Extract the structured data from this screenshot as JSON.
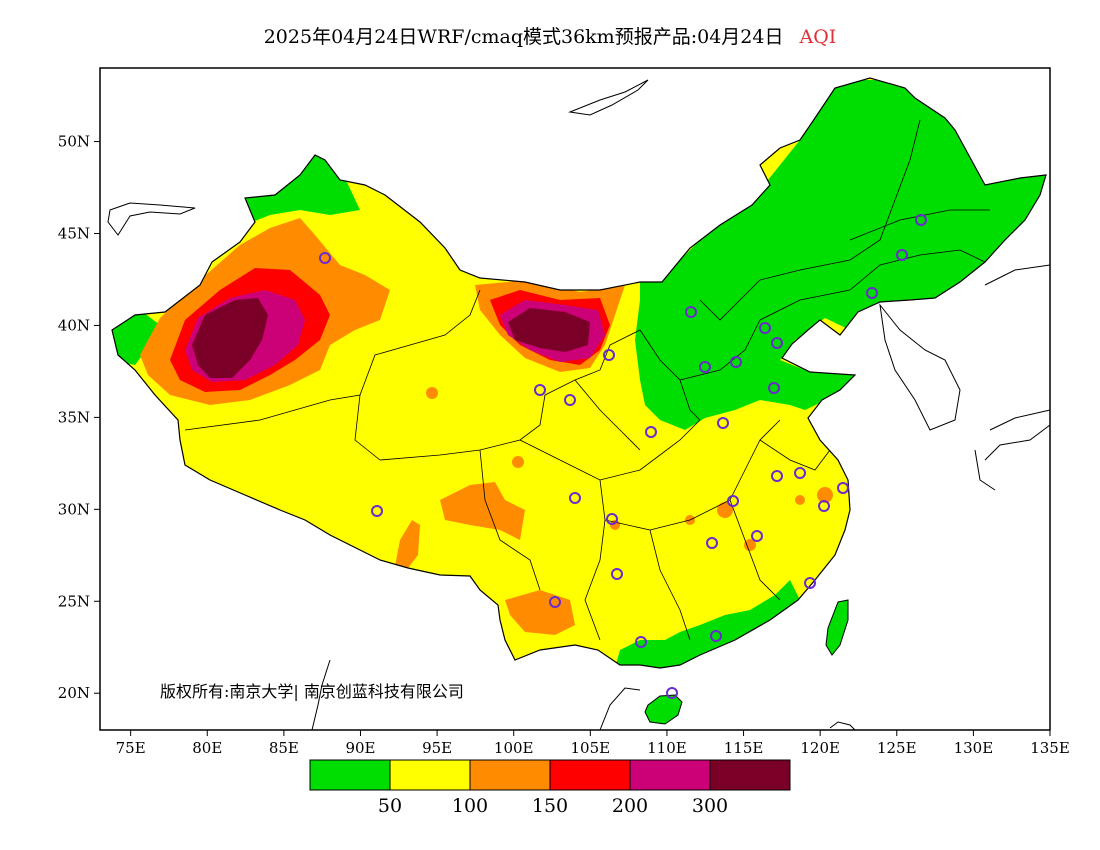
{
  "title": {
    "main": "2025年04月24日WRF/cmaq模式36km预报产品:04月24日",
    "variable": "AQI"
  },
  "map": {
    "lon_range": [
      73,
      135
    ],
    "lat_range": [
      18,
      54
    ],
    "lon_ticks": [
      "75E",
      "80E",
      "85E",
      "90E",
      "95E",
      "100E",
      "105E",
      "110E",
      "115E",
      "120E",
      "125E",
      "130E",
      "135E"
    ],
    "lat_ticks": [
      "20N",
      "25N",
      "30N",
      "35N",
      "40N",
      "45N",
      "50N"
    ],
    "copyright": "版权所有:南京大学| 南京创蓝科技有限公司"
  },
  "legend": {
    "colors": [
      "#00dd00",
      "#ffff00",
      "#ff8c00",
      "#ff0000",
      "#cc0077",
      "#7a0028"
    ],
    "labels": [
      "50",
      "100",
      "150",
      "200",
      "300"
    ]
  }
}
